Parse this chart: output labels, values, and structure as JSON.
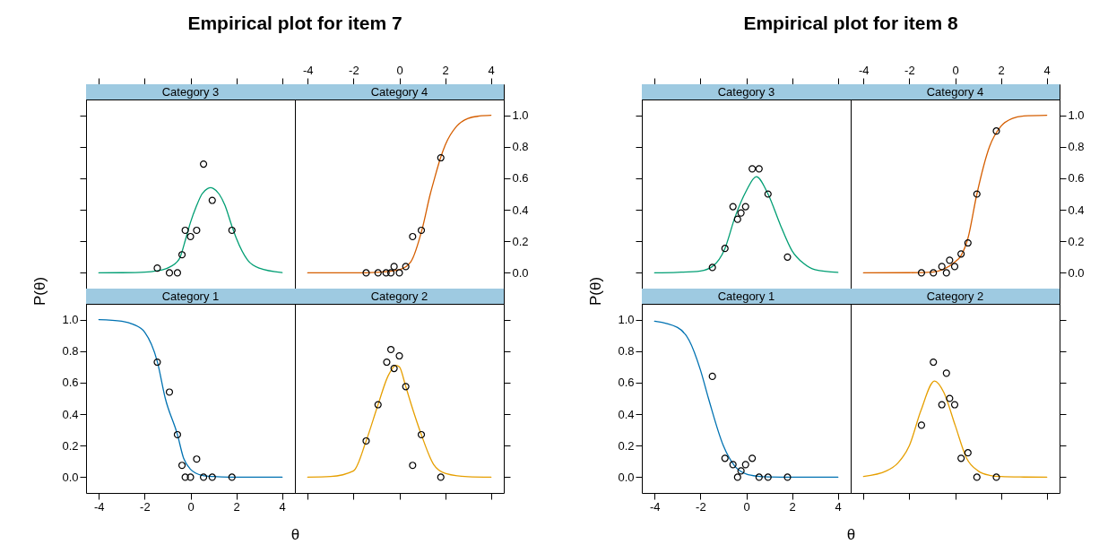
{
  "chart_data": [
    {
      "type": "line",
      "title": "Category 3",
      "annotations": [
        "Empirical plot for item 7"
      ],
      "xlim": [
        -4.56,
        4.56
      ],
      "xticks": [
        -4,
        -2,
        0,
        2,
        4
      ],
      "ylim": [
        -0.1,
        1.1
      ],
      "yticks": [
        0,
        0.2,
        0.4,
        0.6,
        0.8,
        1
      ],
      "tick_labels": false,
      "series": [
        {
          "type": "line",
          "color": "#009e73",
          "x": [
            -4,
            -3,
            -2,
            -1.5,
            -1,
            -0.5,
            -0.2,
            0,
            0.25,
            0.5,
            0.75,
            0.88,
            1,
            1.25,
            1.5,
            1.8,
            2,
            2.5,
            3,
            4
          ],
          "values": [
            0,
            0.001,
            0.005,
            0.012,
            0.03,
            0.085,
            0.22,
            0.32,
            0.42,
            0.5,
            0.535,
            0.54,
            0.535,
            0.5,
            0.43,
            0.3,
            0.22,
            0.08,
            0.03,
            0.002
          ]
        },
        {
          "type": "scatter",
          "color": "#000000",
          "marker": "circle",
          "x": [
            -1.45,
            -0.92,
            -0.57,
            -0.37,
            -0.23,
            0,
            0.27,
            0.57,
            0.95,
            1.81
          ],
          "values": [
            0.03,
            0,
            0,
            0.115,
            0.27,
            0.23,
            0.27,
            0.69,
            0.46,
            0.27
          ]
        }
      ]
    },
    {
      "type": "line",
      "title": "Category 4",
      "xlim": [
        -4.56,
        4.56
      ],
      "xticks": [
        -4,
        -2,
        0,
        2,
        4
      ],
      "ylim": [
        -0.1,
        1.1
      ],
      "yticks": [
        {
          "value": 0,
          "label": "0.0"
        },
        {
          "value": 0.2,
          "label": "0.2"
        },
        {
          "value": 0.4,
          "label": "0.4"
        },
        {
          "value": 0.6,
          "label": "0.6"
        },
        {
          "value": 0.8,
          "label": "0.8"
        },
        {
          "value": 1,
          "label": "1.0"
        }
      ],
      "series": [
        {
          "type": "line",
          "color": "#d55e00",
          "x": [
            -4,
            -2,
            -1,
            0,
            0.5,
            1,
            1.35,
            1.5,
            1.8,
            2,
            2.5,
            3,
            3.5,
            4
          ],
          "values": [
            0,
            0,
            0.003,
            0.02,
            0.07,
            0.28,
            0.5,
            0.58,
            0.73,
            0.81,
            0.93,
            0.98,
            0.995,
            1
          ]
        },
        {
          "type": "scatter",
          "color": "#000000",
          "marker": "circle",
          "x": [
            -1.45,
            -0.93,
            -0.58,
            -0.37,
            -0.23,
            0,
            0.28,
            0.58,
            0.96,
            1.81
          ],
          "values": [
            0,
            0,
            0,
            0,
            0.04,
            0,
            0.04,
            0.23,
            0.27,
            0.73
          ]
        }
      ]
    },
    {
      "type": "line",
      "title": "Category 1",
      "xlabel": "θ",
      "ylabel": "P(θ)",
      "xlim": [
        -4.56,
        4.56
      ],
      "xticks": [
        -4,
        -2,
        0,
        2,
        4
      ],
      "ylim": [
        -0.1,
        1.1
      ],
      "yticks": [
        {
          "value": 0,
          "label": "0.0"
        },
        {
          "value": 0.2,
          "label": "0.2"
        },
        {
          "value": 0.4,
          "label": "0.4"
        },
        {
          "value": 0.6,
          "label": "0.6"
        },
        {
          "value": 0.8,
          "label": "0.8"
        },
        {
          "value": 1,
          "label": "1.0"
        }
      ],
      "series": [
        {
          "type": "line",
          "color": "#0072b2",
          "x": [
            -4,
            -3,
            -2.5,
            -2,
            -1.45,
            -1.1,
            -0.57,
            -0.3,
            0,
            0.5,
            1,
            2,
            3,
            4
          ],
          "values": [
            1,
            0.99,
            0.97,
            0.92,
            0.734,
            0.5,
            0.27,
            0.12,
            0.05,
            0.012,
            0.004,
            0,
            0,
            0
          ]
        },
        {
          "type": "scatter",
          "color": "#000000",
          "marker": "circle",
          "x": [
            -1.45,
            -0.92,
            -0.57,
            -0.37,
            -0.23,
            0,
            0.27,
            0.57,
            0.95,
            1.81
          ],
          "values": [
            0.73,
            0.54,
            0.27,
            0.075,
            0,
            0,
            0.115,
            0,
            0,
            0
          ]
        }
      ]
    },
    {
      "type": "line",
      "title": "Category 2",
      "xlim": [
        -4.56,
        4.56
      ],
      "xticks": [
        -4,
        -2,
        0,
        2,
        4
      ],
      "ylim": [
        -0.1,
        1.1
      ],
      "yticks": [
        0,
        0.2,
        0.4,
        0.6,
        0.8,
        1
      ],
      "tick_labels": false,
      "series": [
        {
          "type": "line",
          "color": "#e69f00",
          "x": [
            -4,
            -3,
            -2,
            -1.45,
            -0.93,
            -0.5,
            -0.15,
            0,
            0.28,
            0.5,
            0.96,
            1.5,
            2,
            3,
            4
          ],
          "values": [
            0,
            0.004,
            0.04,
            0.23,
            0.46,
            0.64,
            0.71,
            0.7,
            0.575,
            0.47,
            0.27,
            0.08,
            0.025,
            0.003,
            0
          ]
        },
        {
          "type": "scatter",
          "color": "#000000",
          "marker": "circle",
          "x": [
            -1.45,
            -0.93,
            -0.55,
            -0.37,
            -0.23,
            0,
            0.28,
            0.58,
            0.96,
            1.81
          ],
          "values": [
            0.23,
            0.46,
            0.73,
            0.81,
            0.69,
            0.77,
            0.575,
            0.075,
            0.27,
            0
          ]
        }
      ]
    },
    {
      "type": "line",
      "title": "Category 3",
      "annotations": [
        "Empirical plot for item 8"
      ],
      "xlim": [
        -4.56,
        4.56
      ],
      "xticks": [
        -4,
        -2,
        0,
        2,
        4
      ],
      "ylim": [
        -0.1,
        1.1
      ],
      "yticks": [
        0,
        0.2,
        0.4,
        0.6,
        0.8,
        1
      ],
      "tick_labels": false,
      "series": [
        {
          "type": "line",
          "color": "#009e73",
          "x": [
            -4,
            -3,
            -2,
            -1.48,
            -0.93,
            -0.5,
            0,
            0.44,
            0.95,
            1.5,
            2,
            2.5,
            3,
            4
          ],
          "values": [
            0,
            0.003,
            0.012,
            0.04,
            0.155,
            0.35,
            0.52,
            0.61,
            0.5,
            0.3,
            0.14,
            0.06,
            0.02,
            0.003
          ]
        },
        {
          "type": "scatter",
          "color": "#000000",
          "marker": "circle",
          "x": [
            -1.48,
            -0.93,
            -0.58,
            -0.38,
            -0.23,
            -0.03,
            0.26,
            0.56,
            0.95,
            1.8
          ],
          "values": [
            0.034,
            0.155,
            0.42,
            0.34,
            0.38,
            0.42,
            0.66,
            0.66,
            0.5,
            0.1
          ]
        }
      ]
    },
    {
      "type": "line",
      "title": "Category 4",
      "xlim": [
        -4.56,
        4.56
      ],
      "xticks": [
        -4,
        -2,
        0,
        2,
        4
      ],
      "ylim": [
        -0.1,
        1.1
      ],
      "yticks": [
        {
          "value": 0,
          "label": "0.0"
        },
        {
          "value": 0.2,
          "label": "0.2"
        },
        {
          "value": 0.4,
          "label": "0.4"
        },
        {
          "value": 0.6,
          "label": "0.6"
        },
        {
          "value": 0.8,
          "label": "0.8"
        },
        {
          "value": 1,
          "label": "1.0"
        }
      ],
      "series": [
        {
          "type": "line",
          "color": "#d55e00",
          "x": [
            -4,
            -2,
            -1,
            0,
            0.26,
            0.56,
            0.95,
            1.5,
            2,
            2.5,
            3,
            4
          ],
          "values": [
            0,
            0.001,
            0.005,
            0.07,
            0.11,
            0.22,
            0.5,
            0.8,
            0.93,
            0.98,
            0.995,
            1
          ]
        },
        {
          "type": "scatter",
          "color": "#000000",
          "marker": "circle",
          "x": [
            -1.47,
            -0.95,
            -0.58,
            -0.38,
            -0.24,
            -0.02,
            0.26,
            0.56,
            0.95,
            1.8
          ],
          "values": [
            0,
            0,
            0.04,
            0,
            0.08,
            0.04,
            0.12,
            0.19,
            0.5,
            0.9
          ]
        }
      ]
    },
    {
      "type": "line",
      "title": "Category 1",
      "xlabel": "θ",
      "ylabel": "P(θ)",
      "xlim": [
        -4.56,
        4.56
      ],
      "xticks": [
        -4,
        -2,
        0,
        2,
        4
      ],
      "ylim": [
        -0.1,
        1.1
      ],
      "yticks": [
        {
          "value": 0,
          "label": "0.0"
        },
        {
          "value": 0.2,
          "label": "0.2"
        },
        {
          "value": 0.4,
          "label": "0.4"
        },
        {
          "value": 0.6,
          "label": "0.6"
        },
        {
          "value": 0.8,
          "label": "0.8"
        },
        {
          "value": 1,
          "label": "1.0"
        }
      ],
      "series": [
        {
          "type": "line",
          "color": "#0072b2",
          "x": [
            -4,
            -3,
            -2.5,
            -2,
            -1.65,
            -1,
            -0.5,
            0,
            0.5,
            1,
            2,
            4
          ],
          "values": [
            0.99,
            0.95,
            0.87,
            0.68,
            0.5,
            0.2,
            0.07,
            0.02,
            0.006,
            0.002,
            0,
            0
          ]
        },
        {
          "type": "scatter",
          "color": "#000000",
          "marker": "circle",
          "x": [
            -1.48,
            -0.93,
            -0.58,
            -0.38,
            -0.23,
            -0.03,
            0.26,
            0.56,
            0.95,
            1.8
          ],
          "values": [
            0.64,
            0.12,
            0.08,
            0,
            0.04,
            0.08,
            0.12,
            0,
            0,
            0
          ]
        }
      ]
    },
    {
      "type": "line",
      "title": "Category 2",
      "xlim": [
        -4.56,
        4.56
      ],
      "xticks": [
        -4,
        -2,
        0,
        2,
        4
      ],
      "ylim": [
        -0.1,
        1.1
      ],
      "yticks": [
        0,
        0.2,
        0.4,
        0.6,
        0.8,
        1
      ],
      "tick_labels": false,
      "series": [
        {
          "type": "line",
          "color": "#e69f00",
          "x": [
            -4,
            -3,
            -2.5,
            -2,
            -1.5,
            -0.9,
            -0.5,
            0,
            0.5,
            1,
            1.5,
            2,
            3,
            4
          ],
          "values": [
            0.005,
            0.04,
            0.09,
            0.2,
            0.42,
            0.61,
            0.54,
            0.33,
            0.12,
            0.04,
            0.012,
            0.004,
            0.001,
            0
          ]
        },
        {
          "type": "scatter",
          "color": "#000000",
          "marker": "circle",
          "x": [
            -1.47,
            -0.95,
            -0.58,
            -0.38,
            -0.24,
            -0.02,
            0.26,
            0.56,
            0.95,
            1.8
          ],
          "values": [
            0.33,
            0.73,
            0.46,
            0.66,
            0.5,
            0.46,
            0.12,
            0.155,
            0,
            0
          ]
        }
      ]
    }
  ]
}
